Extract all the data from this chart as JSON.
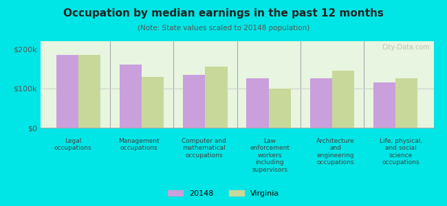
{
  "title": "Occupation by median earnings in the past 12 months",
  "subtitle": "(Note: State values scaled to 20148 population)",
  "categories": [
    "Legal\noccupations",
    "Management\noccupations",
    "Computer and\nmathematical\noccupations",
    "Law\nenforcement\nworkers\nincluding\nsupervisors",
    "Architecture\nand\nengineering\noccupations",
    "Life, physical,\nand social\nscience\noccupations"
  ],
  "values_20148": [
    185000,
    160000,
    135000,
    125000,
    125000,
    115000
  ],
  "values_virginia": [
    185000,
    130000,
    155000,
    100000,
    145000,
    125000
  ],
  "color_20148": "#c9a0dc",
  "color_virginia": "#c8d89a",
  "background_outer": "#00e5e5",
  "background_inner": "#e8f5e0",
  "yticks": [
    0,
    100000,
    200000
  ],
  "ytick_labels": [
    "$0",
    "$100k",
    "$200k"
  ],
  "ylim": [
    0,
    220000
  ],
  "legend_label_20148": "20148",
  "legend_label_virginia": "Virginia",
  "watermark": "City-Data.com"
}
